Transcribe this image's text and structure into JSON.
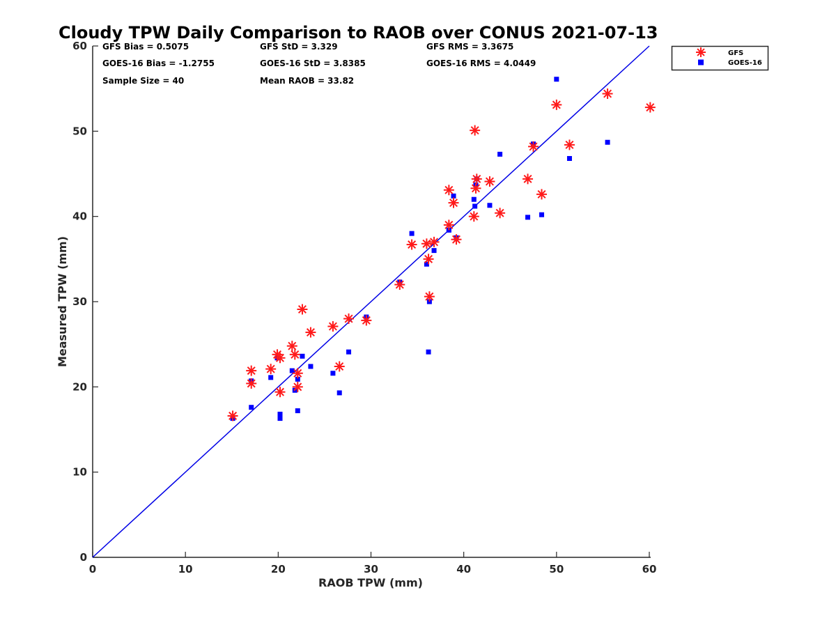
{
  "chart_data": {
    "type": "scatter",
    "title": "Cloudy TPW Daily Comparison to RAOB over CONUS 2021-07-13",
    "xlabel": "RAOB TPW (mm)",
    "ylabel": "Measured TPW (mm)",
    "xlim": [
      0,
      60
    ],
    "ylim": [
      0,
      60
    ],
    "xticks": [
      0,
      10,
      20,
      30,
      40,
      50,
      60
    ],
    "yticks": [
      0,
      10,
      20,
      30,
      40,
      50,
      60
    ],
    "grid": false,
    "legend_position": "top-right outside",
    "reference_line": {
      "name": "1:1 line",
      "from": [
        0,
        0
      ],
      "to": [
        60,
        60
      ],
      "color": "#0000e6"
    },
    "stats": [
      [
        "GFS Bias = 0.5075",
        "GFS StD = 3.329",
        "GFS RMS = 3.3675"
      ],
      [
        "GOES-16 Bias = -1.2755",
        "GOES-16 StD = 3.8385",
        "GOES-16 RMS = 4.0449"
      ],
      [
        "Sample Size = 40",
        "Mean RAOB = 33.82"
      ]
    ],
    "series": [
      {
        "name": "GFS",
        "marker": "asterisk",
        "color": "#ff1a1a",
        "x": [
          15.1,
          17.1,
          17.1,
          19.2,
          19.9,
          20.2,
          20.2,
          21.5,
          21.8,
          22.1,
          22.1,
          22.6,
          23.5,
          25.9,
          26.6,
          27.6,
          29.5,
          33.1,
          34.4,
          36.0,
          36.2,
          36.3,
          36.8,
          38.4,
          38.4,
          38.9,
          39.2,
          41.1,
          41.2,
          41.3,
          41.4,
          42.8,
          43.9,
          46.9,
          47.5,
          48.4,
          50.0,
          51.4,
          55.5,
          60.1
        ],
        "y": [
          16.6,
          21.9,
          20.4,
          22.1,
          23.8,
          23.4,
          19.4,
          24.8,
          23.8,
          20.0,
          21.6,
          29.1,
          26.4,
          27.1,
          22.4,
          28.0,
          27.8,
          32.0,
          36.7,
          36.8,
          35.0,
          30.6,
          37.0,
          43.1,
          39.0,
          41.6,
          37.3,
          40.0,
          50.1,
          43.3,
          44.4,
          44.1,
          40.4,
          44.4,
          48.2,
          42.6,
          53.1,
          48.4,
          54.4,
          52.8
        ]
      },
      {
        "name": "GOES-16",
        "marker": "square",
        "color": "#0000ff",
        "x": [
          15.1,
          17.1,
          17.1,
          19.2,
          19.9,
          20.2,
          20.2,
          21.5,
          21.8,
          22.1,
          22.1,
          22.6,
          23.5,
          25.9,
          26.6,
          27.6,
          29.5,
          33.1,
          34.4,
          36.0,
          36.2,
          36.3,
          36.8,
          38.4,
          38.4,
          38.9,
          39.2,
          41.1,
          41.2,
          41.3,
          41.4,
          42.8,
          43.9,
          46.9,
          47.5,
          48.4,
          50.0,
          51.4,
          55.5
        ],
        "y": [
          16.3,
          20.7,
          17.6,
          21.1,
          23.4,
          16.8,
          16.3,
          21.9,
          19.6,
          20.9,
          17.2,
          23.6,
          22.4,
          21.6,
          19.3,
          24.1,
          28.2,
          32.3,
          38.0,
          34.4,
          24.1,
          30.0,
          36.0,
          38.4,
          38.4,
          42.4,
          37.5,
          42.0,
          41.2,
          43.7,
          44.4,
          41.3,
          47.3,
          39.9,
          48.5,
          40.2,
          56.1,
          46.8,
          48.7
        ]
      }
    ]
  },
  "legend": {
    "items": [
      {
        "label": "GFS"
      },
      {
        "label": "GOES-16"
      }
    ]
  }
}
